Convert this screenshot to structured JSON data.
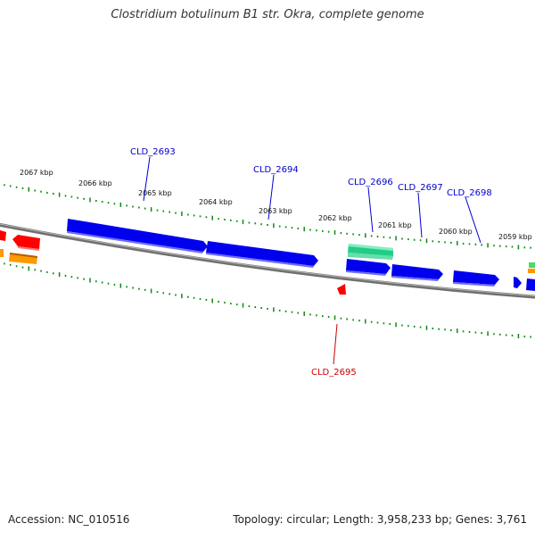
{
  "header": {
    "title": "Clostridium botulinum B1 str. Okra, complete genome"
  },
  "footer": {
    "accession": "Accession: NC_010516",
    "topology": "Topology: circular; Length: 3,958,233 bp; Genes: 3,761"
  },
  "colors": {
    "forward_gene": "#0000ee",
    "reverse_gene": "#ff0000",
    "rna_gene": "#22cc88",
    "other_gene": "#ff9900",
    "backbone": "#808080",
    "tick": "#118811",
    "label_forward": "#0000cc",
    "label_reverse": "#cc0000"
  },
  "kbp_labels": [
    "2067 kbp",
    "2066 kbp",
    "2065 kbp",
    "2064 kbp",
    "2063 kbp",
    "2062 kbp",
    "2061 kbp",
    "2060 kbp",
    "2059 kbp"
  ],
  "gene_labels": {
    "forward": [
      "CLD_2693",
      "CLD_2694",
      "CLD_2696",
      "CLD_2697",
      "CLD_2698"
    ],
    "reverse": [
      "CLD_2695"
    ]
  }
}
